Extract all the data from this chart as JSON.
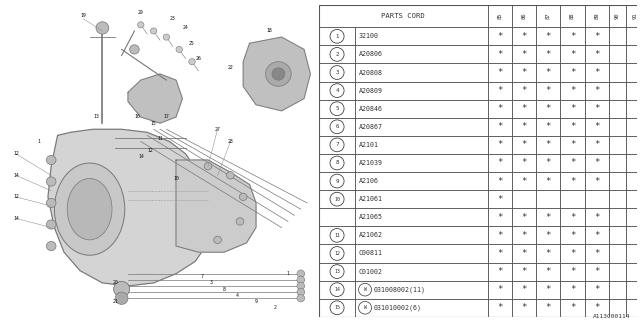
{
  "bg_color": "#ffffff",
  "header_label": "PARTS CORD",
  "year_cols": [
    "85",
    "86",
    "87",
    "88",
    "89",
    "90",
    "91"
  ],
  "rows": [
    {
      "num": "1",
      "code": "32100",
      "w_prefix": false,
      "stars": [
        1,
        1,
        1,
        1,
        1,
        0,
        0
      ]
    },
    {
      "num": "2",
      "code": "A20806",
      "w_prefix": false,
      "stars": [
        1,
        1,
        1,
        1,
        1,
        0,
        0
      ]
    },
    {
      "num": "3",
      "code": "A20808",
      "w_prefix": false,
      "stars": [
        1,
        1,
        1,
        1,
        1,
        0,
        0
      ]
    },
    {
      "num": "4",
      "code": "A20809",
      "w_prefix": false,
      "stars": [
        1,
        1,
        1,
        1,
        1,
        0,
        0
      ]
    },
    {
      "num": "5",
      "code": "A20846",
      "w_prefix": false,
      "stars": [
        1,
        1,
        1,
        1,
        1,
        0,
        0
      ]
    },
    {
      "num": "6",
      "code": "A20867",
      "w_prefix": false,
      "stars": [
        1,
        1,
        1,
        1,
        1,
        0,
        0
      ]
    },
    {
      "num": "7",
      "code": "A2101",
      "w_prefix": false,
      "stars": [
        1,
        1,
        1,
        1,
        1,
        0,
        0
      ]
    },
    {
      "num": "8",
      "code": "A21039",
      "w_prefix": false,
      "stars": [
        1,
        1,
        1,
        1,
        1,
        0,
        0
      ]
    },
    {
      "num": "9",
      "code": "A2106",
      "w_prefix": false,
      "stars": [
        1,
        1,
        1,
        1,
        1,
        0,
        0
      ]
    },
    {
      "num": "10",
      "code": "A21061",
      "w_prefix": false,
      "stars": [
        1,
        0,
        0,
        0,
        0,
        0,
        0
      ],
      "sub": true
    },
    {
      "num": "",
      "code": "A21065",
      "w_prefix": false,
      "stars": [
        1,
        1,
        1,
        1,
        1,
        0,
        0
      ],
      "sub": true
    },
    {
      "num": "11",
      "code": "A21062",
      "w_prefix": false,
      "stars": [
        1,
        1,
        1,
        1,
        1,
        0,
        0
      ]
    },
    {
      "num": "12",
      "code": "C00811",
      "w_prefix": false,
      "stars": [
        1,
        1,
        1,
        1,
        1,
        0,
        0
      ]
    },
    {
      "num": "13",
      "code": "C01002",
      "w_prefix": false,
      "stars": [
        1,
        1,
        1,
        1,
        1,
        0,
        0
      ]
    },
    {
      "num": "14",
      "code": "031008002(11)",
      "w_prefix": true,
      "stars": [
        1,
        1,
        1,
        1,
        1,
        0,
        0
      ]
    },
    {
      "num": "15",
      "code": "031010002(6)",
      "w_prefix": true,
      "stars": [
        1,
        1,
        1,
        1,
        1,
        0,
        0
      ]
    }
  ],
  "diagram_label": "A113C00114",
  "font_color": "#333333",
  "line_color": "#666666"
}
